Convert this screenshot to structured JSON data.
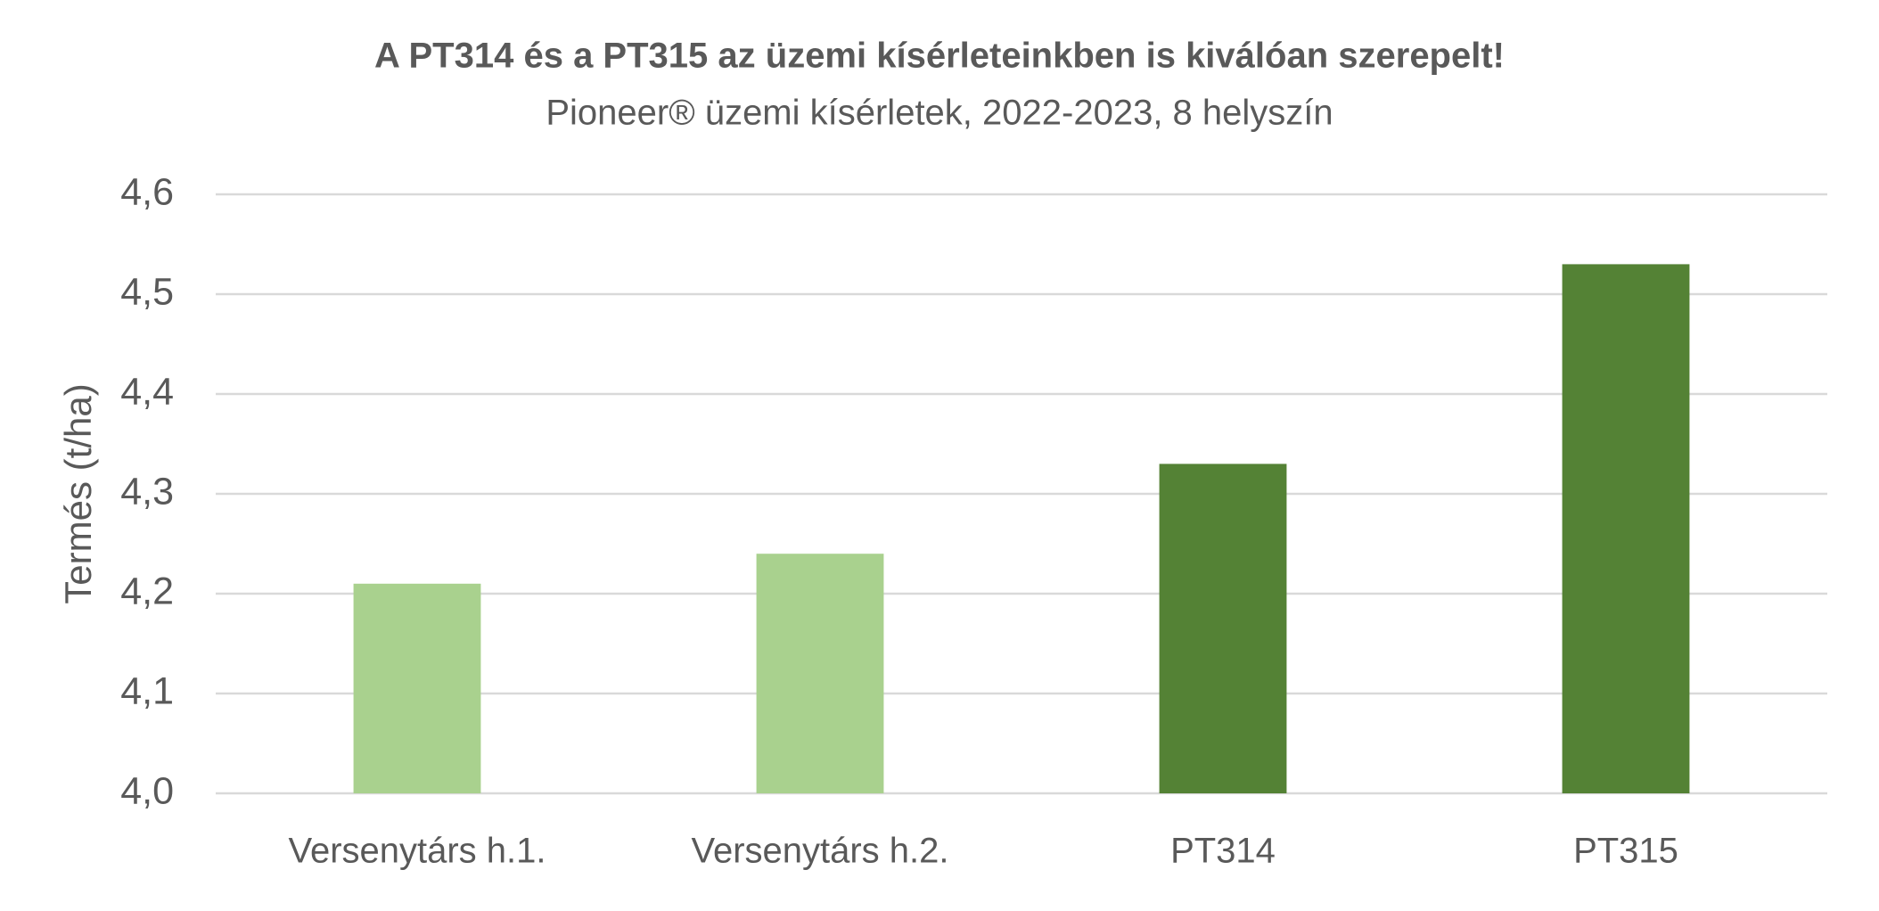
{
  "chart_data": {
    "type": "bar",
    "title": "A PT314 és a PT315 az üzemi kísérleteinkben is kiválóan szerepelt!",
    "subtitle": "Pioneer® üzemi kísérletek, 2022-2023, 8 helyszín",
    "y_label": "Termés (t/ha)",
    "categories": [
      "Versenytárs h.1.",
      "Versenytárs h.2.",
      "PT314",
      "PT315"
    ],
    "values": [
      4.21,
      4.24,
      4.33,
      4.53
    ],
    "colors": [
      "#a9d18e",
      "#a9d18e",
      "#548235",
      "#548235"
    ],
    "ylim": [
      4.0,
      4.6
    ],
    "yticks": [
      {
        "value": 4.0,
        "label": "4,0"
      },
      {
        "value": 4.1,
        "label": "4,1"
      },
      {
        "value": 4.2,
        "label": "4,2"
      },
      {
        "value": 4.3,
        "label": "4,3"
      },
      {
        "value": 4.4,
        "label": "4,4"
      },
      {
        "value": 4.5,
        "label": "4,5"
      },
      {
        "value": 4.6,
        "label": "4,6"
      }
    ],
    "grid": true
  }
}
